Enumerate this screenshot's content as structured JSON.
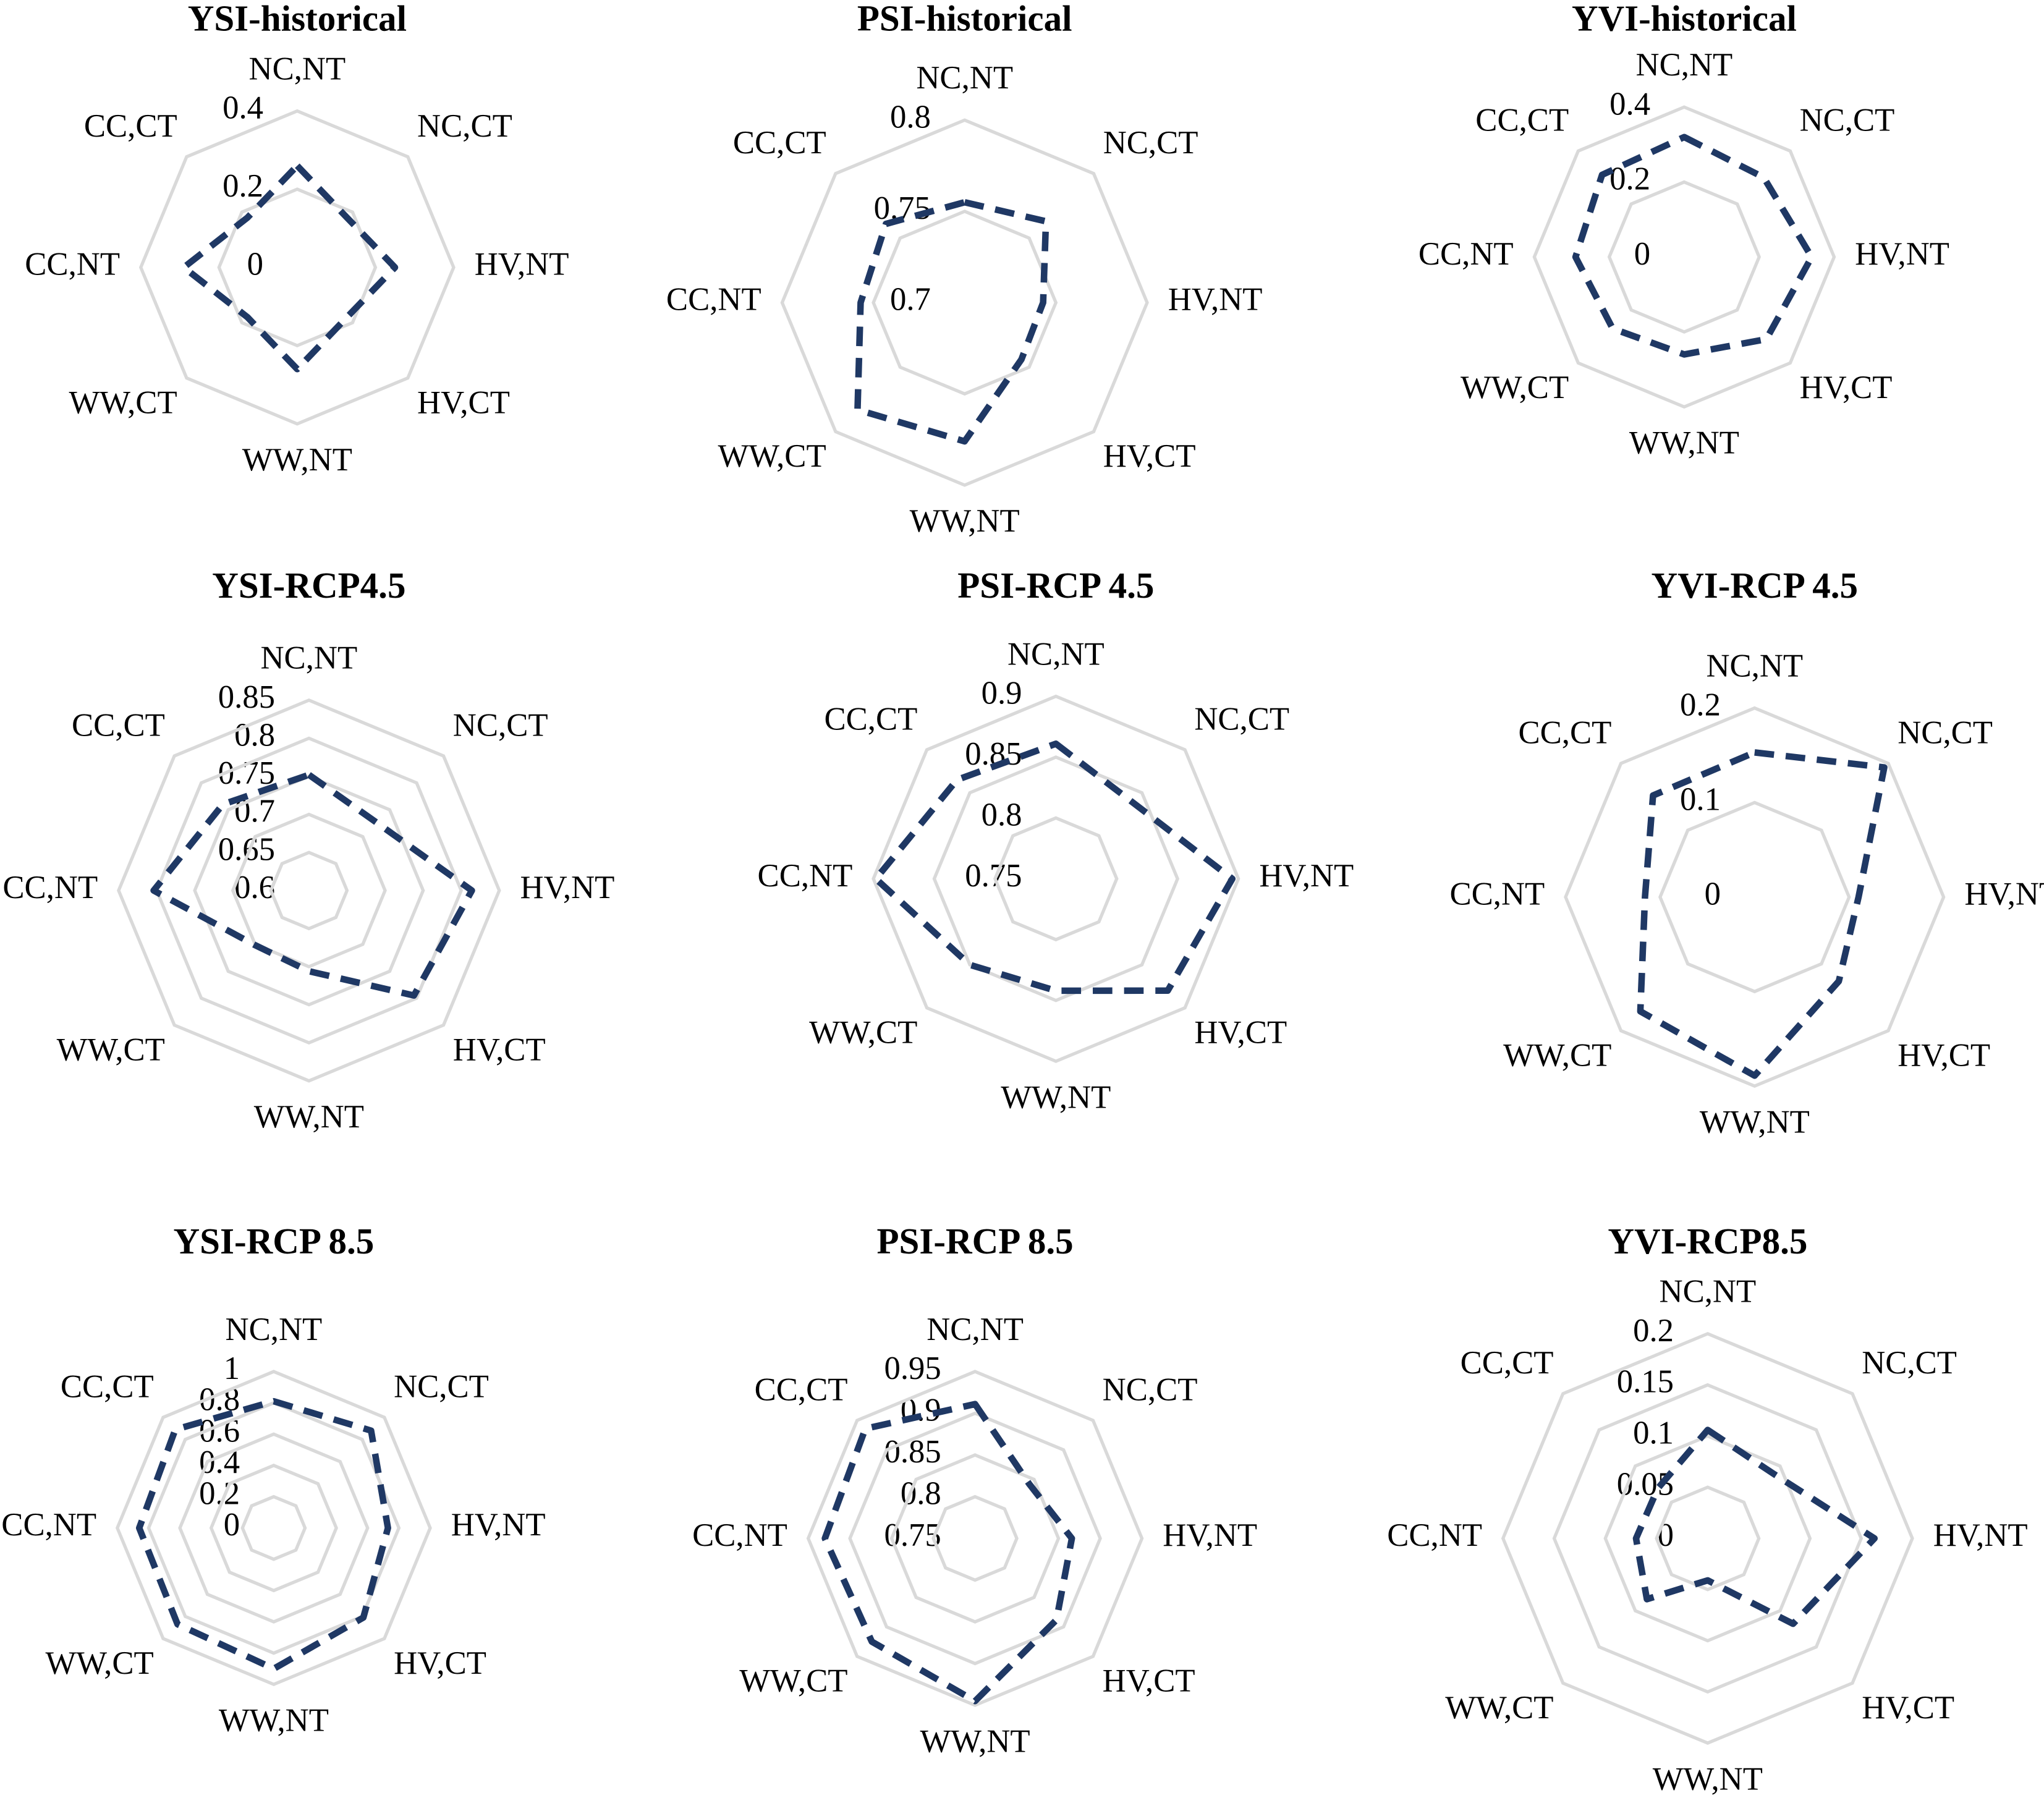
{
  "chart_data": [
    {
      "type": "radar",
      "title": "YSI-historical",
      "categories": [
        "NC,NT",
        "NC,CT",
        "HV,NT",
        "HV,CT",
        "WW,NT",
        "WW,CT",
        "CC,NT",
        "CC,CT"
      ],
      "values": [
        0.26,
        0.18,
        0.25,
        0.18,
        0.26,
        0.18,
        0.29,
        0.18
      ],
      "color": "#1f3864",
      "line_style": "dashed",
      "ylim": [
        0,
        0.4
      ],
      "yticks": [
        0,
        0.2,
        0.4
      ],
      "grid": true
    },
    {
      "type": "radar",
      "title": "PSI-historical",
      "categories": [
        "NC,NT",
        "NC,CT",
        "HV,NT",
        "HV,CT",
        "WW,NT",
        "WW,CT",
        "CC,NT",
        "CC,CT"
      ],
      "values": [
        0.755,
        0.763,
        0.743,
        0.744,
        0.776,
        0.783,
        0.757,
        0.761
      ],
      "color": "#1f3864",
      "line_style": "dashed",
      "ylim": [
        0.7,
        0.8
      ],
      "yticks": [
        0.7,
        0.75,
        0.8
      ],
      "grid": true
    },
    {
      "type": "radar",
      "title": "YVI-historical",
      "categories": [
        "NC,NT",
        "NC,CT",
        "HV,NT",
        "HV,CT",
        "WW,NT",
        "WW,CT",
        "CC,NT",
        "CC,CT"
      ],
      "values": [
        0.32,
        0.3,
        0.34,
        0.31,
        0.26,
        0.27,
        0.29,
        0.31
      ],
      "color": "#1f3864",
      "line_style": "dashed",
      "ylim": [
        0,
        0.4
      ],
      "yticks": [
        0,
        0.2,
        0.4
      ],
      "grid": true
    },
    {
      "type": "radar",
      "title": "YSI-RCP4.5",
      "categories": [
        "NC,NT",
        "NC,CT",
        "HV,NT",
        "HV,CT",
        "WW,NT",
        "WW,CT",
        "CC,NT",
        "CC,CT"
      ],
      "values": [
        0.752,
        0.726,
        0.814,
        0.795,
        0.706,
        0.701,
        0.804,
        0.76
      ],
      "color": "#1f3864",
      "line_style": "dashed",
      "ylim": [
        0.6,
        0.85
      ],
      "yticks": [
        0.6,
        0.65,
        0.7,
        0.75,
        0.8,
        0.85
      ],
      "grid": true
    },
    {
      "type": "radar",
      "title": "PSI-RCP 4.5",
      "categories": [
        "NC,NT",
        "NC,CT",
        "HV,NT",
        "HV,CT",
        "WW,NT",
        "WW,CT",
        "CC,NT",
        "CC,CT"
      ],
      "values": [
        0.861,
        0.839,
        0.895,
        0.88,
        0.842,
        0.85,
        0.898,
        0.865
      ],
      "color": "#1f3864",
      "line_style": "dashed",
      "ylim": [
        0.75,
        0.9
      ],
      "yticks": [
        0.75,
        0.8,
        0.85,
        0.9
      ],
      "grid": true
    },
    {
      "type": "radar",
      "title": "YVI-RCP 4.5",
      "categories": [
        "NC,NT",
        "NC,CT",
        "HV,NT",
        "HV,CT",
        "WW,NT",
        "WW,CT",
        "CC,NT",
        "CC,CT"
      ],
      "values": [
        0.153,
        0.194,
        0.11,
        0.126,
        0.189,
        0.171,
        0.116,
        0.152
      ],
      "color": "#1f3864",
      "line_style": "dashed",
      "ylim": [
        0,
        0.2
      ],
      "yticks": [
        0,
        0.1,
        0.2
      ],
      "grid": true
    },
    {
      "type": "radar",
      "title": "YSI-RCP 8.5",
      "categories": [
        "NC,NT",
        "NC,CT",
        "HV,NT",
        "HV,CT",
        "WW,NT",
        "WW,CT",
        "CC,NT",
        "CC,CT"
      ],
      "values": [
        0.81,
        0.88,
        0.73,
        0.81,
        0.9,
        0.87,
        0.86,
        0.89
      ],
      "color": "#1f3864",
      "line_style": "dashed",
      "ylim": [
        0,
        1
      ],
      "yticks": [
        0,
        0.2,
        0.4,
        0.6,
        0.8,
        1
      ],
      "grid": true
    },
    {
      "type": "radar",
      "title": "PSI-RCP 8.5",
      "categories": [
        "NC,NT",
        "NC,CT",
        "HV,NT",
        "HV,CT",
        "WW,NT",
        "WW,CT",
        "CC,NT",
        "CC,CT"
      ],
      "values": [
        0.911,
        0.842,
        0.866,
        0.888,
        0.945,
        0.925,
        0.93,
        0.936
      ],
      "color": "#1f3864",
      "line_style": "dashed",
      "ylim": [
        0.75,
        0.95
      ],
      "yticks": [
        0.75,
        0.8,
        0.85,
        0.9,
        0.95
      ],
      "grid": true
    },
    {
      "type": "radar",
      "title": "YVI-RCP8.5",
      "categories": [
        "NC,NT",
        "NC,CT",
        "HV,NT",
        "HV,CT",
        "WW,NT",
        "WW,CT",
        "CC,NT",
        "CC,CT"
      ],
      "values": [
        0.106,
        0.09,
        0.163,
        0.118,
        0.041,
        0.084,
        0.07,
        0.069
      ],
      "color": "#1f3864",
      "line_style": "dashed",
      "ylim": [
        0,
        0.2
      ],
      "yticks": [
        0,
        0.05,
        0.1,
        0.15,
        0.2
      ],
      "grid": true
    }
  ]
}
